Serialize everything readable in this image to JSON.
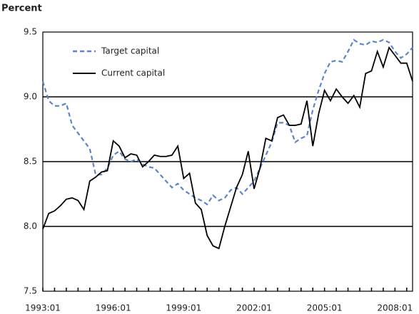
{
  "chart_data": {
    "type": "line",
    "y_label": "Percent",
    "categories": [
      "1993:01",
      null,
      null,
      null,
      null,
      null,
      null,
      null,
      null,
      null,
      null,
      null,
      "1996:01",
      null,
      null,
      null,
      null,
      null,
      null,
      null,
      null,
      null,
      null,
      null,
      "1999:01",
      null,
      null,
      null,
      null,
      null,
      null,
      null,
      null,
      null,
      null,
      null,
      "2002:01",
      null,
      null,
      null,
      null,
      null,
      null,
      null,
      null,
      null,
      null,
      null,
      "2005:01",
      null,
      null,
      null,
      null,
      null,
      null,
      null,
      null,
      null,
      null,
      null,
      "2008:01",
      null,
      null,
      null
    ],
    "series": [
      {
        "name": "Target capital",
        "color": "#5b86c9",
        "dash": true,
        "values": [
          9.12,
          8.97,
          8.93,
          8.93,
          8.95,
          8.78,
          8.72,
          8.66,
          8.6,
          8.4,
          8.4,
          8.45,
          8.55,
          8.58,
          8.52,
          8.5,
          8.52,
          8.48,
          8.46,
          8.45,
          8.4,
          8.35,
          8.3,
          8.33,
          8.28,
          8.25,
          8.22,
          8.2,
          8.17,
          8.24,
          8.2,
          8.22,
          8.28,
          8.3,
          8.25,
          8.3,
          8.35,
          8.45,
          8.55,
          8.65,
          8.8,
          8.8,
          8.78,
          8.65,
          8.68,
          8.7,
          8.9,
          9.05,
          9.18,
          9.27,
          9.28,
          9.27,
          9.35,
          9.44,
          9.41,
          9.4,
          9.43,
          9.42,
          9.44,
          9.42,
          9.35,
          9.3,
          9.33,
          9.38
        ]
      },
      {
        "name": "Current capital",
        "color": "#000000",
        "dash": false,
        "values": [
          7.98,
          8.1,
          8.12,
          8.16,
          8.21,
          8.22,
          8.2,
          8.13,
          8.35,
          8.38,
          8.42,
          8.43,
          8.66,
          8.62,
          8.53,
          8.56,
          8.55,
          8.46,
          8.5,
          8.55,
          8.54,
          8.54,
          8.55,
          8.62,
          8.37,
          8.41,
          8.18,
          8.13,
          7.93,
          7.85,
          7.83,
          8.0,
          8.15,
          8.3,
          8.4,
          8.58,
          8.29,
          8.45,
          8.68,
          8.66,
          8.84,
          8.86,
          8.78,
          8.78,
          8.79,
          8.97,
          8.62,
          8.87,
          9.05,
          8.97,
          9.06,
          9.0,
          8.95,
          9.01,
          8.92,
          9.18,
          9.2,
          9.35,
          9.23,
          9.38,
          9.32,
          9.26,
          9.26,
          9.12
        ]
      }
    ],
    "ylim": [
      7.5,
      9.5
    ],
    "yticks": [
      7.5,
      {
        "value": 8,
        "label": "8.0"
      },
      8.5,
      {
        "value": 9,
        "label": "9.0"
      },
      9.5
    ],
    "grid": true,
    "legend": "upper left"
  }
}
